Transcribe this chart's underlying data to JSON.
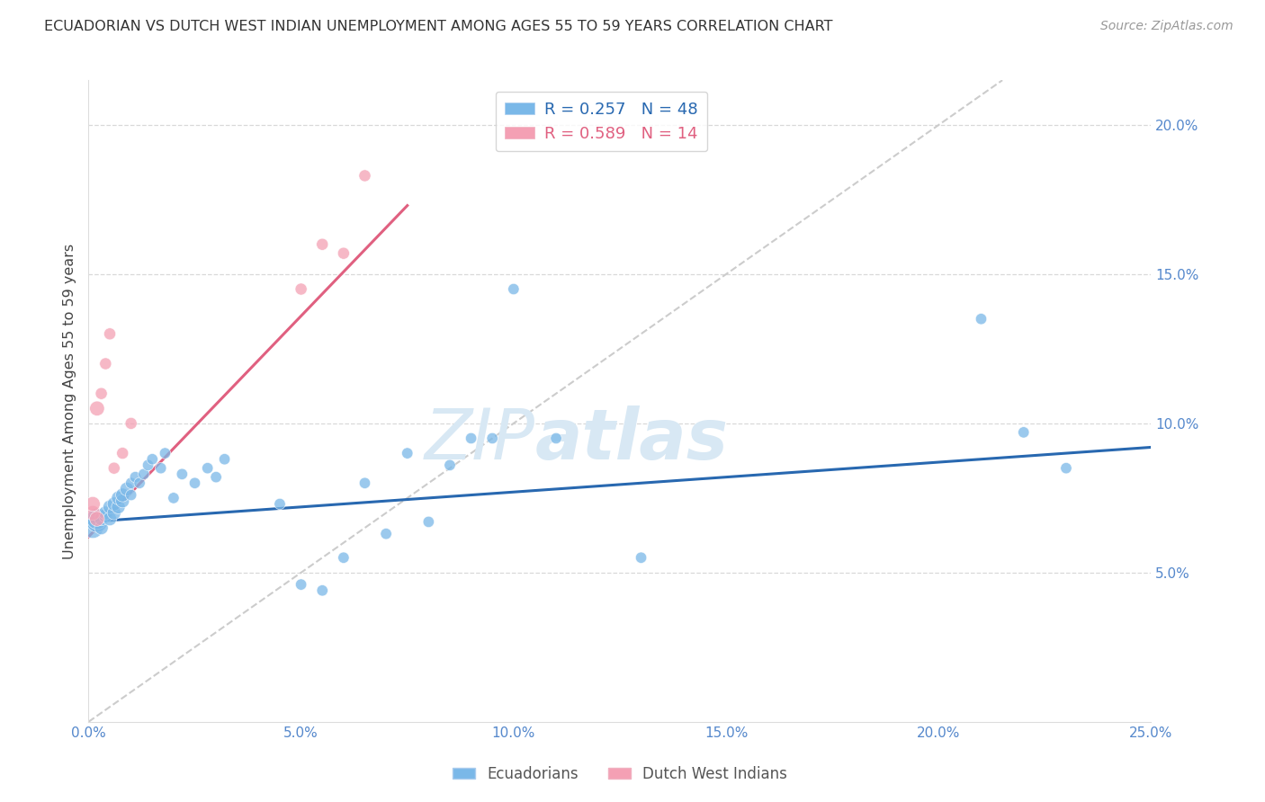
{
  "title": "ECUADORIAN VS DUTCH WEST INDIAN UNEMPLOYMENT AMONG AGES 55 TO 59 YEARS CORRELATION CHART",
  "source": "Source: ZipAtlas.com",
  "ylabel": "Unemployment Among Ages 55 to 59 years",
  "xlim": [
    0.0,
    0.25
  ],
  "ylim": [
    0.0,
    0.215
  ],
  "xticks": [
    0.0,
    0.05,
    0.1,
    0.15,
    0.2,
    0.25
  ],
  "yticks": [
    0.05,
    0.1,
    0.15,
    0.2
  ],
  "xticklabels": [
    "0.0%",
    "5.0%",
    "10.0%",
    "15.0%",
    "20.0%",
    "25.0%"
  ],
  "yticklabels": [
    "5.0%",
    "10.0%",
    "15.0%",
    "20.0%"
  ],
  "blue_scatter_x": [
    0.001,
    0.002,
    0.002,
    0.003,
    0.003,
    0.004,
    0.004,
    0.005,
    0.005,
    0.006,
    0.006,
    0.007,
    0.007,
    0.008,
    0.008,
    0.009,
    0.01,
    0.01,
    0.011,
    0.012,
    0.013,
    0.014,
    0.015,
    0.017,
    0.018,
    0.02,
    0.022,
    0.025,
    0.028,
    0.03,
    0.032,
    0.045,
    0.05,
    0.055,
    0.06,
    0.065,
    0.07,
    0.075,
    0.08,
    0.085,
    0.09,
    0.095,
    0.1,
    0.11,
    0.13,
    0.21,
    0.22,
    0.23
  ],
  "blue_scatter_y": [
    0.065,
    0.067,
    0.068,
    0.065,
    0.068,
    0.069,
    0.07,
    0.068,
    0.072,
    0.07,
    0.073,
    0.072,
    0.075,
    0.074,
    0.076,
    0.078,
    0.076,
    0.08,
    0.082,
    0.08,
    0.083,
    0.086,
    0.088,
    0.085,
    0.09,
    0.075,
    0.083,
    0.08,
    0.085,
    0.082,
    0.088,
    0.073,
    0.046,
    0.044,
    0.055,
    0.08,
    0.063,
    0.09,
    0.067,
    0.086,
    0.095,
    0.095,
    0.145,
    0.095,
    0.055,
    0.135,
    0.097,
    0.085
  ],
  "pink_scatter_x": [
    0.001,
    0.001,
    0.002,
    0.002,
    0.003,
    0.004,
    0.005,
    0.006,
    0.008,
    0.01,
    0.05,
    0.055,
    0.06,
    0.065
  ],
  "pink_scatter_y": [
    0.07,
    0.073,
    0.068,
    0.105,
    0.11,
    0.12,
    0.13,
    0.085,
    0.09,
    0.1,
    0.145,
    0.16,
    0.157,
    0.183
  ],
  "blue_line_x": [
    0.0,
    0.25
  ],
  "blue_line_y": [
    0.067,
    0.092
  ],
  "pink_line_x": [
    0.0,
    0.075
  ],
  "pink_line_y": [
    0.062,
    0.173
  ],
  "diagonal_line_x": [
    0.0,
    0.215
  ],
  "diagonal_line_y": [
    0.0,
    0.215
  ],
  "scatter_color_blue": "#7ab8e8",
  "scatter_color_pink": "#f4a0b4",
  "line_color_blue": "#2868b0",
  "line_color_pink": "#e06080",
  "diagonal_color": "#cccccc",
  "watermark_zip": "ZIP",
  "watermark_atlas": "atlas",
  "watermark_color": "#d8e8f4",
  "background_color": "#ffffff",
  "grid_color": "#d0d0d0"
}
